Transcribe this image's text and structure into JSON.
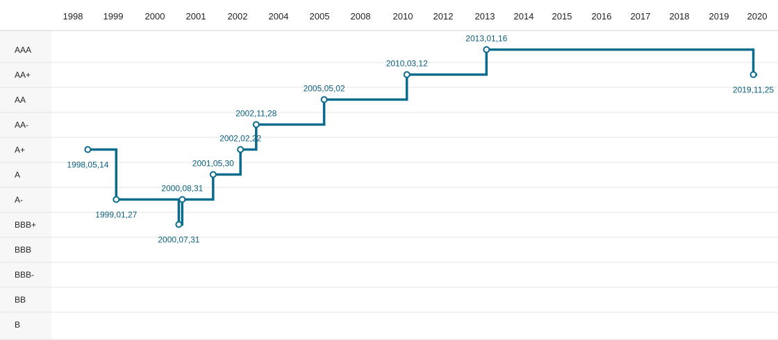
{
  "colors": {
    "line": "#0a6b8c",
    "label_text": "#0a5f7d",
    "grid": "#e6e6e6",
    "label_column_bg": "#f7f7f7"
  },
  "chart_data": {
    "type": "line",
    "step": "after",
    "x_labels": [
      "1998",
      "1999",
      "2000",
      "2001",
      "2002",
      "2004",
      "2005",
      "2008",
      "2010",
      "2012",
      "2013",
      "2014",
      "2015",
      "2016",
      "2017",
      "2018",
      "2019",
      "2020"
    ],
    "y_categories": [
      "AAA",
      "AA+",
      "AA",
      "AA-",
      "A+",
      "A",
      "A-",
      "BBB+",
      "BBB",
      "BBB-",
      "BB",
      "B"
    ],
    "points": [
      {
        "date": "1998,05,14",
        "rating": "A+"
      },
      {
        "date": "1999,01,27",
        "rating": "A-"
      },
      {
        "date": "2000,07,31",
        "rating": "BBB+"
      },
      {
        "date": "2000,08,31",
        "rating": "A-"
      },
      {
        "date": "2001,05,30",
        "rating": "A"
      },
      {
        "date": "2002,02,22",
        "rating": "A+"
      },
      {
        "date": "2002,11,28",
        "rating": "AA-"
      },
      {
        "date": "2005,05,02",
        "rating": "AA"
      },
      {
        "date": "2010,03,12",
        "rating": "AA+"
      },
      {
        "date": "2013,01,16",
        "rating": "AAA"
      },
      {
        "date": "2019,11,25",
        "rating": "AA+"
      }
    ],
    "line_end": "2020",
    "grid": true,
    "legend": "none"
  }
}
